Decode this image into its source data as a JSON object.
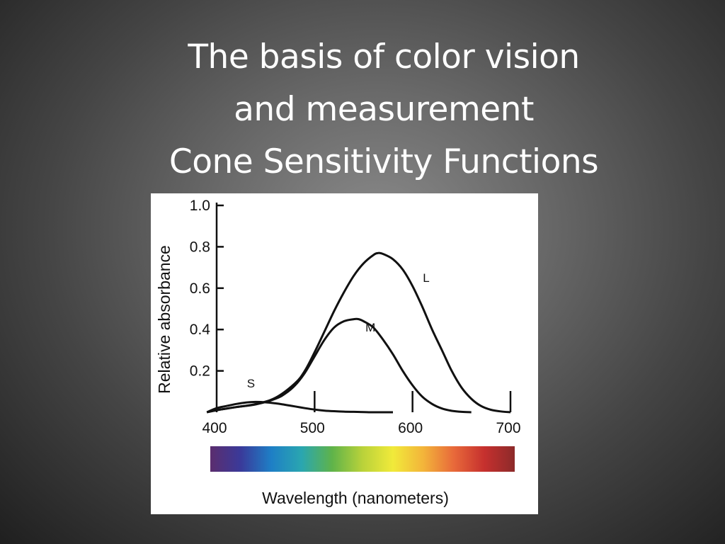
{
  "slide": {
    "title_lines": [
      "The basis of color vision",
      "and measurement",
      "Cone Sensitivity Functions"
    ]
  },
  "chart_data": {
    "type": "line",
    "title": "",
    "xlabel": "Wavelength (nanometers)",
    "ylabel": "Relative absorbance",
    "xlim": [
      400,
      700
    ],
    "ylim": [
      0,
      1.0
    ],
    "xticks": [
      400,
      500,
      600,
      700
    ],
    "xtick_labels": [
      "400",
      "500",
      "600",
      "700"
    ],
    "yticks": [
      0.2,
      0.4,
      0.6,
      0.8,
      1.0
    ],
    "ytick_labels": [
      "0.2",
      "0.4",
      "0.6",
      "0.8",
      "1.0"
    ],
    "grid": false,
    "legend": "none",
    "spectrum_bar": true,
    "series": [
      {
        "name": "S",
        "x": [
          390,
          400,
          410,
          420,
          430,
          440,
          450,
          460,
          470,
          480,
          490,
          500,
          510,
          520,
          530,
          540,
          550,
          560,
          570,
          580
        ],
        "y": [
          0.0,
          0.02,
          0.03,
          0.04,
          0.047,
          0.05,
          0.048,
          0.043,
          0.036,
          0.028,
          0.02,
          0.013,
          0.008,
          0.005,
          0.003,
          0.002,
          0.001,
          0.0,
          0.0,
          0.0
        ]
      },
      {
        "name": "M",
        "x": [
          390,
          400,
          420,
          440,
          460,
          470,
          480,
          490,
          500,
          510,
          520,
          530,
          540,
          545,
          550,
          560,
          570,
          580,
          590,
          600,
          610,
          620,
          630,
          640,
          650,
          660
        ],
        "y": [
          0.0,
          0.01,
          0.025,
          0.038,
          0.065,
          0.09,
          0.13,
          0.19,
          0.27,
          0.35,
          0.41,
          0.44,
          0.45,
          0.45,
          0.44,
          0.41,
          0.35,
          0.28,
          0.2,
          0.13,
          0.075,
          0.04,
          0.018,
          0.007,
          0.002,
          0.0
        ]
      },
      {
        "name": "L",
        "x": [
          390,
          400,
          420,
          440,
          460,
          480,
          490,
          500,
          510,
          520,
          530,
          540,
          550,
          560,
          565,
          570,
          580,
          590,
          600,
          610,
          620,
          630,
          640,
          650,
          660,
          670,
          680,
          690,
          700
        ],
        "y": [
          0.0,
          0.01,
          0.025,
          0.04,
          0.07,
          0.14,
          0.2,
          0.29,
          0.39,
          0.49,
          0.58,
          0.66,
          0.72,
          0.76,
          0.77,
          0.765,
          0.74,
          0.69,
          0.61,
          0.51,
          0.4,
          0.3,
          0.2,
          0.12,
          0.065,
          0.03,
          0.012,
          0.004,
          0.0
        ]
      }
    ],
    "series_label_positions": {
      "S": [
        435,
        0.12
      ],
      "M": [
        557,
        0.39
      ],
      "L": [
        614,
        0.63
      ]
    },
    "spectrum_colors": [
      "#5b2d6e",
      "#3a3a9a",
      "#1e7fc6",
      "#2aa6b0",
      "#5fb34a",
      "#b9d23a",
      "#f1ea3a",
      "#f3b43a",
      "#e8693a",
      "#c6302e",
      "#8c2a2a"
    ]
  }
}
